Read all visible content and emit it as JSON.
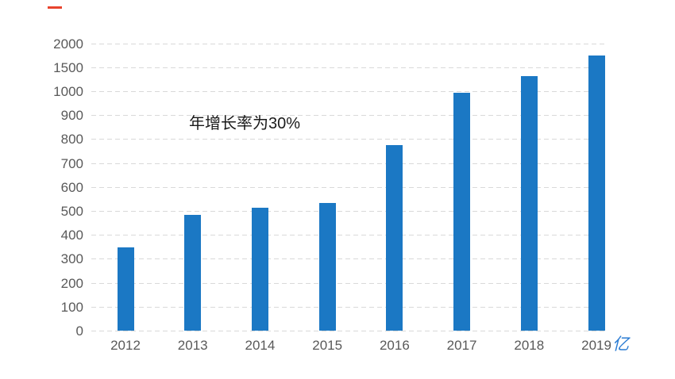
{
  "page": {
    "background": "#ffffff"
  },
  "colors": {
    "bar": "#1b78c4",
    "gridline": "#d9d9d9",
    "tick_text": "#595959",
    "annotation_text": "#1a1a1a",
    "unit_text": "#2b7cd3",
    "red_mark": "#e8432d"
  },
  "chart_data": {
    "type": "bar",
    "title": "",
    "categories": [
      "2012",
      "2013",
      "2014",
      "2015",
      "2016",
      "2017",
      "2018",
      "2019"
    ],
    "values": [
      350,
      485,
      515,
      535,
      775,
      995,
      1330,
      1755
    ],
    "annotation": "年增长率为30%",
    "unit": "亿",
    "xlabel": "",
    "ylabel": "",
    "y_ticks": [
      0,
      100,
      200,
      300,
      400,
      500,
      600,
      700,
      800,
      900,
      1000,
      1500,
      2000
    ],
    "y_axis_note": "non-linear axis: every tick interval equally spaced (100 steps up to 1000, then 500 steps to 2000)",
    "grid": "dashed horizontal gridlines, no solid axis lines",
    "legend": "none",
    "bar_color": "#1b78c4"
  }
}
